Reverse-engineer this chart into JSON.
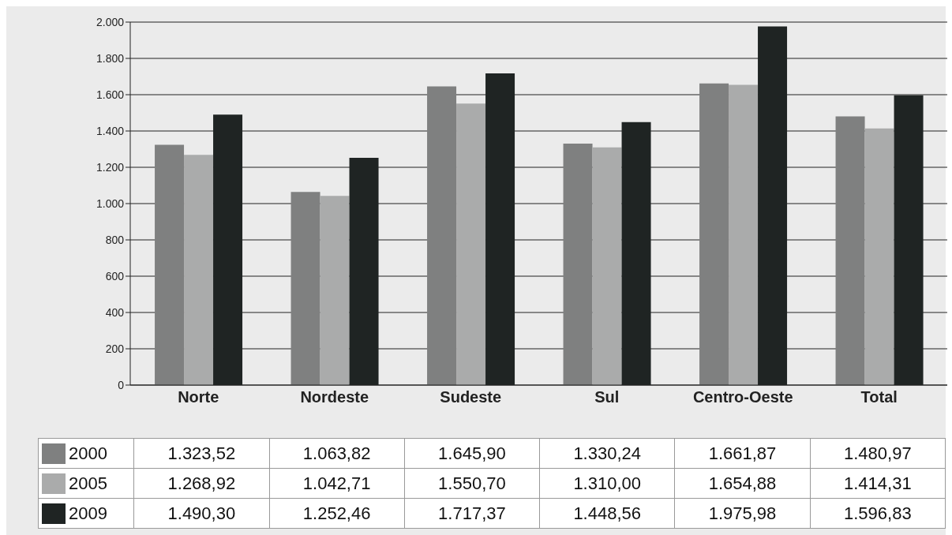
{
  "chart_data": {
    "type": "bar",
    "categories": [
      "Norte",
      "Nordeste",
      "Sudeste",
      "Sul",
      "Centro-Oeste",
      "Total"
    ],
    "series": [
      {
        "name": "2000",
        "color": "#7f8080",
        "values": [
          1323.52,
          1063.82,
          1645.9,
          1330.24,
          1661.87,
          1480.97
        ],
        "value_labels": [
          "1.323,52",
          "1.063,82",
          "1.645,90",
          "1.330,24",
          "1.661,87",
          "1.480,97"
        ]
      },
      {
        "name": "2005",
        "color": "#aaabab",
        "values": [
          1268.92,
          1042.71,
          1550.7,
          1310.0,
          1654.88,
          1414.31
        ],
        "value_labels": [
          "1.268,92",
          "1.042,71",
          "1.550,70",
          "1.310,00",
          "1.654,88",
          "1.414,31"
        ]
      },
      {
        "name": "2009",
        "color": "#1f2423",
        "values": [
          1490.3,
          1252.46,
          1717.37,
          1448.56,
          1975.98,
          1596.83
        ],
        "value_labels": [
          "1.490,30",
          "1.252,46",
          "1.717,37",
          "1.448,56",
          "1.975,98",
          "1.596,83"
        ]
      }
    ],
    "ylim": [
      0,
      2000
    ],
    "yticks": [
      {
        "value": 0,
        "label": "0"
      },
      {
        "value": 200,
        "label": "200"
      },
      {
        "value": 400,
        "label": "400"
      },
      {
        "value": 600,
        "label": "600"
      },
      {
        "value": 800,
        "label": "800"
      },
      {
        "value": 1000,
        "label": "1.000"
      },
      {
        "value": 1200,
        "label": "1.200"
      },
      {
        "value": 1400,
        "label": "1.400"
      },
      {
        "value": 1600,
        "label": "1.600"
      },
      {
        "value": 1800,
        "label": "1.800"
      },
      {
        "value": 2000,
        "label": "2.000"
      }
    ],
    "grid": "y",
    "legend": "bottom"
  }
}
